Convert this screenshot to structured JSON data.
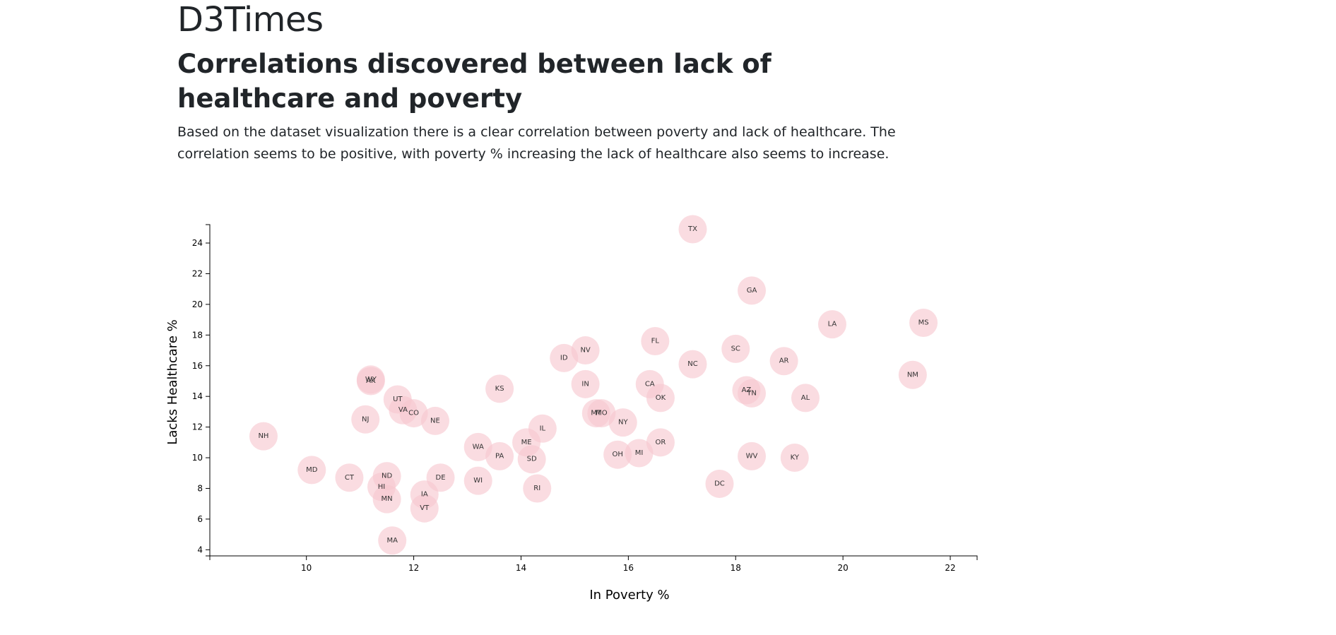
{
  "page": {
    "site_title": "D3Times",
    "headline": "Correlations discovered between lack of healthcare and poverty",
    "intro": "Based on the dataset visualization there is a clear correlation between poverty and lack of healthcare. The correlation seems to be positive, with poverty % increasing the lack of healthcare also seems to increase."
  },
  "chart_data": {
    "type": "scatter",
    "xlabel": "In Poverty %",
    "ylabel": "Lacks Healthcare %",
    "xlim": [
      8.2,
      22.5
    ],
    "ylim": [
      3.6,
      25.2
    ],
    "xticks": [
      "10",
      "12",
      "14",
      "16",
      "18",
      "20",
      "22"
    ],
    "yticks": [
      "4",
      "6",
      "8",
      "10",
      "12",
      "14",
      "16",
      "18",
      "20",
      "22",
      "24"
    ],
    "point_color": "#f7c6cf",
    "points": [
      {
        "abbr": "TX",
        "x": 17.2,
        "y": 24.9
      },
      {
        "abbr": "GA",
        "x": 18.3,
        "y": 20.9
      },
      {
        "abbr": "LA",
        "x": 19.8,
        "y": 18.7
      },
      {
        "abbr": "MS",
        "x": 21.5,
        "y": 18.8
      },
      {
        "abbr": "FL",
        "x": 16.5,
        "y": 17.6
      },
      {
        "abbr": "SC",
        "x": 18.0,
        "y": 17.1
      },
      {
        "abbr": "NV",
        "x": 15.2,
        "y": 17.0
      },
      {
        "abbr": "ID",
        "x": 14.8,
        "y": 16.5
      },
      {
        "abbr": "AR",
        "x": 18.9,
        "y": 16.3
      },
      {
        "abbr": "NC",
        "x": 17.2,
        "y": 16.1
      },
      {
        "abbr": "NM",
        "x": 21.3,
        "y": 15.4
      },
      {
        "abbr": "WY",
        "x": 11.2,
        "y": 15.1
      },
      {
        "abbr": "AK",
        "x": 11.2,
        "y": 15.0
      },
      {
        "abbr": "IN",
        "x": 15.2,
        "y": 14.8
      },
      {
        "abbr": "CA",
        "x": 16.4,
        "y": 14.8
      },
      {
        "abbr": "KS",
        "x": 13.6,
        "y": 14.5
      },
      {
        "abbr": "AZ",
        "x": 18.2,
        "y": 14.4
      },
      {
        "abbr": "TN",
        "x": 18.3,
        "y": 14.2
      },
      {
        "abbr": "OK",
        "x": 16.6,
        "y": 13.9
      },
      {
        "abbr": "AL",
        "x": 19.3,
        "y": 13.9
      },
      {
        "abbr": "UT",
        "x": 11.7,
        "y": 13.8
      },
      {
        "abbr": "VA",
        "x": 11.8,
        "y": 13.1
      },
      {
        "abbr": "CO",
        "x": 12.0,
        "y": 12.9
      },
      {
        "abbr": "MT",
        "x": 15.4,
        "y": 12.9
      },
      {
        "abbr": "MO",
        "x": 15.5,
        "y": 12.9
      },
      {
        "abbr": "NJ",
        "x": 11.1,
        "y": 12.5
      },
      {
        "abbr": "NE",
        "x": 12.4,
        "y": 12.4
      },
      {
        "abbr": "NY",
        "x": 15.9,
        "y": 12.3
      },
      {
        "abbr": "IL",
        "x": 14.4,
        "y": 11.9
      },
      {
        "abbr": "NH",
        "x": 9.2,
        "y": 11.4
      },
      {
        "abbr": "ME",
        "x": 14.1,
        "y": 11.0
      },
      {
        "abbr": "OR",
        "x": 16.6,
        "y": 11.0
      },
      {
        "abbr": "WA",
        "x": 13.2,
        "y": 10.7
      },
      {
        "abbr": "OH",
        "x": 15.8,
        "y": 10.2
      },
      {
        "abbr": "MI",
        "x": 16.2,
        "y": 10.3
      },
      {
        "abbr": "PA",
        "x": 13.6,
        "y": 10.1
      },
      {
        "abbr": "WV",
        "x": 18.3,
        "y": 10.1
      },
      {
        "abbr": "KY",
        "x": 19.1,
        "y": 10.0
      },
      {
        "abbr": "SD",
        "x": 14.2,
        "y": 9.9
      },
      {
        "abbr": "MD",
        "x": 10.1,
        "y": 9.2
      },
      {
        "abbr": "ND",
        "x": 11.5,
        "y": 8.8
      },
      {
        "abbr": "CT",
        "x": 10.8,
        "y": 8.7
      },
      {
        "abbr": "DE",
        "x": 12.5,
        "y": 8.7
      },
      {
        "abbr": "WI",
        "x": 13.2,
        "y": 8.5
      },
      {
        "abbr": "DC",
        "x": 17.7,
        "y": 8.3
      },
      {
        "abbr": "HI",
        "x": 11.4,
        "y": 8.1
      },
      {
        "abbr": "RI",
        "x": 14.3,
        "y": 8.0
      },
      {
        "abbr": "IA",
        "x": 12.2,
        "y": 7.6
      },
      {
        "abbr": "MN",
        "x": 11.5,
        "y": 7.3
      },
      {
        "abbr": "VT",
        "x": 12.2,
        "y": 6.7
      },
      {
        "abbr": "MA",
        "x": 11.6,
        "y": 4.6
      }
    ]
  }
}
